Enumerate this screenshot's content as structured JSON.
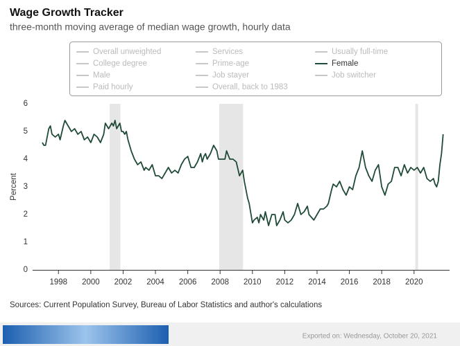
{
  "chart_data": {
    "type": "line",
    "title": "Wage Growth Tracker",
    "subtitle": "three-month moving average of median wage growth, hourly data",
    "y_label": "Percent",
    "source": "Sources: Current Population Survey, Bureau of Labor Statistics and author's calculations",
    "export_note": "Exported on: Wednesday, October 20, 2021",
    "x": [
      1997.0,
      1997.1,
      1997.2,
      1997.4,
      1997.5,
      1997.6,
      1997.8,
      1998.0,
      1998.1,
      1998.3,
      1998.4,
      1998.6,
      1998.8,
      1999.0,
      1999.2,
      1999.4,
      1999.6,
      1999.8,
      2000.0,
      2000.2,
      2000.4,
      2000.6,
      2000.8,
      2000.9,
      2001.1,
      2001.3,
      2001.4,
      2001.5,
      2001.6,
      2001.8,
      2001.9,
      2002.0,
      2002.1,
      2002.2,
      2002.3,
      2002.5,
      2002.7,
      2002.9,
      2003.1,
      2003.3,
      2003.4,
      2003.6,
      2003.8,
      2004.0,
      2004.2,
      2004.4,
      2004.6,
      2004.8,
      2005.0,
      2005.2,
      2005.4,
      2005.6,
      2005.8,
      2006.0,
      2006.2,
      2006.4,
      2006.6,
      2006.8,
      2006.9,
      2007.0,
      2007.1,
      2007.2,
      2007.4,
      2007.6,
      2007.8,
      2007.9,
      2008.1,
      2008.3,
      2008.4,
      2008.6,
      2008.8,
      2009.0,
      2009.2,
      2009.4,
      2009.5,
      2009.7,
      2009.8,
      2010.0,
      2010.1,
      2010.3,
      2010.4,
      2010.5,
      2010.7,
      2010.8,
      2011.0,
      2011.2,
      2011.4,
      2011.5,
      2011.7,
      2011.9,
      2012.0,
      2012.2,
      2012.4,
      2012.6,
      2012.8,
      2013.0,
      2013.2,
      2013.4,
      2013.5,
      2013.8,
      2014.0,
      2014.2,
      2014.4,
      2014.6,
      2014.7,
      2014.9,
      2015.0,
      2015.2,
      2015.4,
      2015.6,
      2015.8,
      2016.0,
      2016.2,
      2016.4,
      2016.6,
      2016.8,
      2017.0,
      2017.2,
      2017.4,
      2017.6,
      2017.8,
      2018.0,
      2018.2,
      2018.4,
      2018.6,
      2018.8,
      2019.0,
      2019.2,
      2019.4,
      2019.6,
      2019.8,
      2020.0,
      2020.2,
      2020.4,
      2020.6,
      2020.8,
      2021.0,
      2021.2,
      2021.3,
      2021.4,
      2021.5,
      2021.6,
      2021.7,
      2021.8
    ],
    "series": [
      {
        "name": "Female",
        "color": "#1e4a36",
        "values": [
          4.6,
          4.5,
          4.5,
          5.1,
          5.2,
          4.9,
          4.8,
          4.9,
          4.7,
          5.2,
          5.4,
          5.2,
          5.0,
          5.1,
          4.9,
          5.0,
          4.7,
          4.8,
          4.6,
          4.9,
          4.8,
          4.6,
          4.9,
          5.3,
          5.1,
          5.3,
          5.2,
          5.4,
          5.1,
          5.3,
          5.0,
          5.0,
          4.9,
          5.0,
          4.7,
          4.3,
          4.0,
          3.8,
          3.9,
          3.6,
          3.7,
          3.6,
          3.8,
          3.4,
          3.4,
          3.3,
          3.5,
          3.7,
          3.5,
          3.6,
          3.5,
          3.8,
          4.0,
          4.1,
          3.7,
          3.7,
          3.9,
          4.2,
          3.9,
          4.1,
          4.2,
          4.0,
          4.2,
          4.5,
          4.3,
          4.0,
          4.0,
          4.0,
          4.3,
          4.0,
          4.0,
          3.9,
          3.4,
          3.6,
          3.2,
          2.6,
          2.4,
          1.7,
          1.8,
          1.9,
          1.7,
          2.0,
          1.8,
          2.1,
          1.6,
          2.0,
          2.0,
          1.6,
          1.8,
          2.1,
          1.8,
          1.7,
          1.8,
          2.0,
          2.4,
          2.0,
          2.1,
          2.3,
          2.0,
          1.8,
          2.0,
          2.2,
          2.2,
          2.3,
          2.4,
          2.9,
          3.1,
          3.0,
          3.2,
          2.9,
          2.7,
          3.0,
          2.9,
          3.4,
          3.7,
          4.3,
          3.7,
          3.4,
          3.2,
          3.6,
          3.8,
          3.0,
          2.7,
          3.1,
          3.2,
          3.7,
          3.7,
          3.4,
          3.8,
          3.5,
          3.7,
          3.6,
          3.7,
          3.5,
          3.7,
          3.3,
          3.2,
          3.3,
          3.1,
          3.0,
          3.2,
          3.8,
          4.2,
          4.9
        ]
      }
    ],
    "legend": {
      "inactive_series": [
        "Overall unweighted",
        "Services",
        "Usually full-time",
        "College degree",
        "Prime-age",
        "Male",
        "Job stayer",
        "Job switcher",
        "Paid hourly",
        "Overall, back to 1983"
      ],
      "inactive_color": "#c8c8c8"
    },
    "shaded_ranges": [
      [
        2001.17,
        2001.83
      ],
      [
        2007.95,
        2009.42
      ],
      [
        2020.08,
        2020.25
      ]
    ],
    "shade_color": "#e6e6e6",
    "xlim": [
      1996.4,
      2022.2
    ],
    "xticks": [
      1998,
      2000,
      2002,
      2004,
      2006,
      2008,
      2010,
      2012,
      2014,
      2016,
      2018,
      2020
    ],
    "ylim": [
      0,
      6
    ],
    "yticks": [
      0,
      1,
      2,
      3,
      4,
      5,
      6
    ]
  }
}
